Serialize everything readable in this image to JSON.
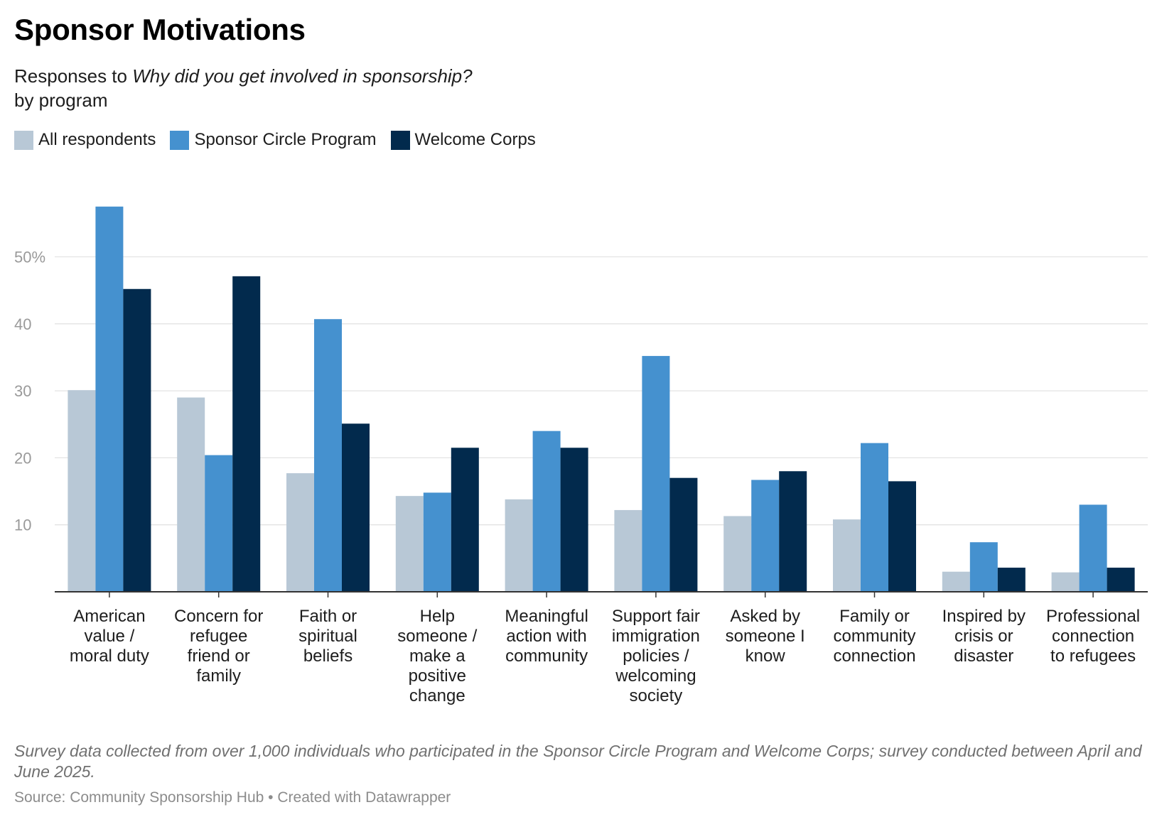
{
  "chart_data": {
    "type": "bar",
    "title": "Sponsor Motivations",
    "subtitle_prefix": "Responses to ",
    "subtitle_question": "Why did you get involved in sponsorship?",
    "subtitle_suffix": "by program",
    "categories": [
      [
        "American",
        "value /",
        "moral duty"
      ],
      [
        "Concern for",
        "refugee",
        "friend or",
        "family"
      ],
      [
        "Faith or",
        "spiritual",
        "beliefs"
      ],
      [
        "Help",
        "someone /",
        "make a",
        "positive",
        "change"
      ],
      [
        "Meaningful",
        "action with",
        "community"
      ],
      [
        "Support fair",
        "immigration",
        "policies /",
        "welcoming",
        "society"
      ],
      [
        "Asked by",
        "someone I",
        "know"
      ],
      [
        "Family or",
        "community",
        "connection"
      ],
      [
        "Inspired by",
        "crisis or",
        "disaster"
      ],
      [
        "Professional",
        "connection",
        "to refugees"
      ]
    ],
    "series": [
      {
        "name": "All respondents",
        "color": "#b8c8d6",
        "values": [
          30.1,
          29.0,
          17.7,
          14.3,
          13.8,
          12.2,
          11.3,
          10.8,
          3.0,
          2.9
        ]
      },
      {
        "name": "Sponsor Circle Program",
        "color": "#4591cf",
        "values": [
          57.5,
          20.4,
          40.7,
          14.8,
          24.0,
          35.2,
          16.7,
          22.2,
          7.4,
          13.0
        ]
      },
      {
        "name": "Welcome Corps",
        "color": "#022a4d",
        "values": [
          45.2,
          47.1,
          25.1,
          21.5,
          21.5,
          17.0,
          18.0,
          16.5,
          3.6,
          3.6
        ]
      }
    ],
    "ylim": [
      0,
      60
    ],
    "yticks": [
      10,
      20,
      30,
      40,
      50
    ],
    "ytick_labels": [
      "10",
      "20",
      "30",
      "40",
      "50%"
    ],
    "grid": true,
    "legend_placement": "top-left",
    "xlabel": "",
    "ylabel": ""
  },
  "notes": "Survey data collected from over 1,000 individuals who participated in the Sponsor Circle Program and Welcome Corps; survey conducted between April and June 2025.",
  "source": "Source: Community Sponsorship Hub • Created with Datawrapper"
}
